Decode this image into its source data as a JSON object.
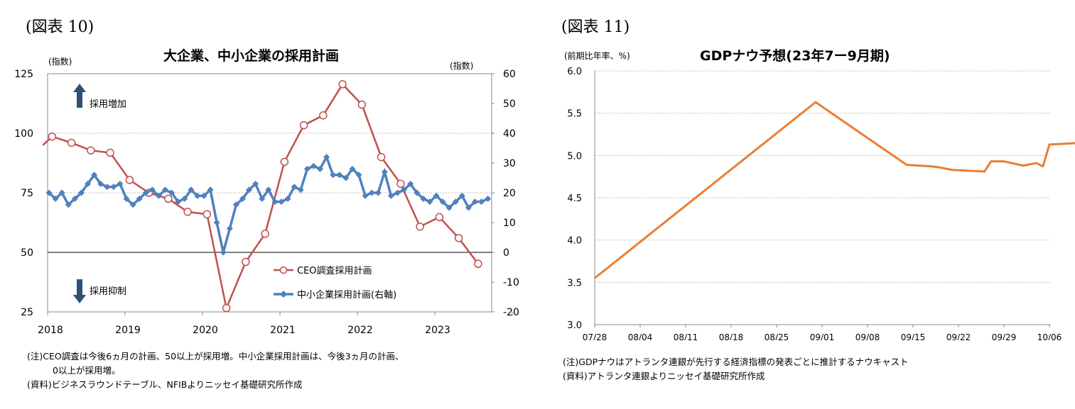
{
  "left": {
    "fig_label": "(図表 10)",
    "title": "大企業、中小企業の採用計画",
    "left_unit": "(指数)",
    "right_unit": "(指数)",
    "up_arrow_label": "採用増加",
    "down_arrow_label": "採用抑制",
    "notes": [
      "(注)CEO調査は今後6ヵ月の計画、50以上が採用増。中小企業採用計画は、今後3ヵ月の計画、",
      "0以上が採用増。",
      "(資料)ビジネスラウンドテーブル、NFIBよりニッセイ基礎研究所作成"
    ]
  },
  "right": {
    "fig_label": "(図表 11)",
    "title": "GDPナウ予想(23年7ー9月期)",
    "unit": "(前期比年率、%)",
    "notes": [
      "(注)GDPナウはアトランタ連銀が先行する経済指標の発表ごとに推計するナウキャスト",
      "(資料)アトランタ連銀よりニッセイ基礎研究所作成"
    ]
  },
  "chart_data": [
    {
      "type": "line",
      "title": "大企業、中小企業の採用計画",
      "xlabel": "",
      "ylabel": "(指数)",
      "y2label": "(指数)",
      "x_ticks": [
        "2018",
        "2019",
        "2020",
        "2021",
        "2022",
        "2023"
      ],
      "ylim": [
        25,
        125
      ],
      "y_ticks": [
        25,
        50,
        75,
        100,
        125
      ],
      "y2lim": [
        -20,
        60
      ],
      "y2_ticks": [
        -20,
        -10,
        0,
        10,
        20,
        30,
        40,
        50,
        60
      ],
      "legend_position": "bottom-right",
      "series": [
        {
          "name": "CEO調査採用計画",
          "axis": "left",
          "color": "#c0504d",
          "marker": "circle",
          "points": [
            [
              2017.92,
              95.0
            ],
            [
              2018.04,
              98.6
            ],
            [
              2018.29,
              96.0
            ],
            [
              2018.54,
              92.8
            ],
            [
              2018.79,
              91.8
            ],
            [
              2019.04,
              80.4
            ],
            [
              2019.29,
              75.0
            ],
            [
              2019.54,
              72.5
            ],
            [
              2019.79,
              67.0
            ],
            [
              2020.04,
              66.0
            ],
            [
              2020.29,
              26.6
            ],
            [
              2020.54,
              46.0
            ],
            [
              2020.79,
              57.8
            ],
            [
              2021.04,
              88.0
            ],
            [
              2021.29,
              103.4
            ],
            [
              2021.54,
              107.5
            ],
            [
              2021.79,
              120.6
            ],
            [
              2022.04,
              112.0
            ],
            [
              2022.29,
              90.0
            ],
            [
              2022.54,
              78.8
            ],
            [
              2022.79,
              60.8
            ],
            [
              2023.04,
              64.8
            ],
            [
              2023.29,
              56.0
            ],
            [
              2023.54,
              45.2
            ]
          ]
        },
        {
          "name": "中小企業採用計画(右軸)",
          "axis": "right",
          "color": "#4f81bd",
          "marker": "diamond",
          "values_start": 2018.0,
          "values_step": 0.0833333,
          "values": [
            20,
            18,
            20,
            16,
            18,
            20,
            23,
            26,
            23,
            22,
            22,
            23,
            18,
            16,
            18,
            20,
            21,
            19,
            21,
            20,
            17,
            18,
            21,
            19,
            19,
            21,
            10,
            0,
            8,
            16,
            18,
            21,
            23,
            18,
            21,
            17,
            17,
            18,
            22,
            21,
            28,
            29,
            28,
            32,
            26,
            26,
            25,
            28,
            26,
            19,
            20,
            20,
            27,
            19,
            20,
            21,
            23,
            20,
            18,
            17,
            19,
            17,
            15,
            17,
            19,
            15,
            17,
            17,
            18
          ]
        }
      ]
    },
    {
      "type": "line",
      "title": "GDPナウ予想(23年7ー9月期)",
      "xlabel": "",
      "ylabel": "(前期比年率、%)",
      "x_ticks": [
        "07/28",
        "08/04",
        "08/11",
        "08/18",
        "08/25",
        "09/01",
        "09/08",
        "09/15",
        "09/22",
        "09/29",
        "10/06"
      ],
      "ylim": [
        3.0,
        6.0
      ],
      "y_ticks": [
        "3.0",
        "3.5",
        "4.0",
        "4.5",
        "5.0",
        "5.5",
        "6.0"
      ],
      "grid": "horizontal dotted",
      "series": [
        {
          "color": "#ed7d31",
          "points": [
            [
              "07/28",
              3.55
            ],
            [
              "08/31",
              5.63
            ],
            [
              "09/14",
              4.89
            ],
            [
              "09/18",
              4.87
            ],
            [
              "09/19",
              4.86
            ],
            [
              "09/21",
              4.83
            ],
            [
              "09/26",
              4.81
            ],
            [
              "09/27",
              4.93
            ],
            [
              "09/29",
              4.93
            ],
            [
              "10/02",
              4.88
            ],
            [
              "10/04",
              4.91
            ],
            [
              "10/05",
              4.87
            ],
            [
              "10/06",
              5.13
            ],
            [
              "10/11",
              5.15
            ]
          ]
        }
      ]
    }
  ]
}
